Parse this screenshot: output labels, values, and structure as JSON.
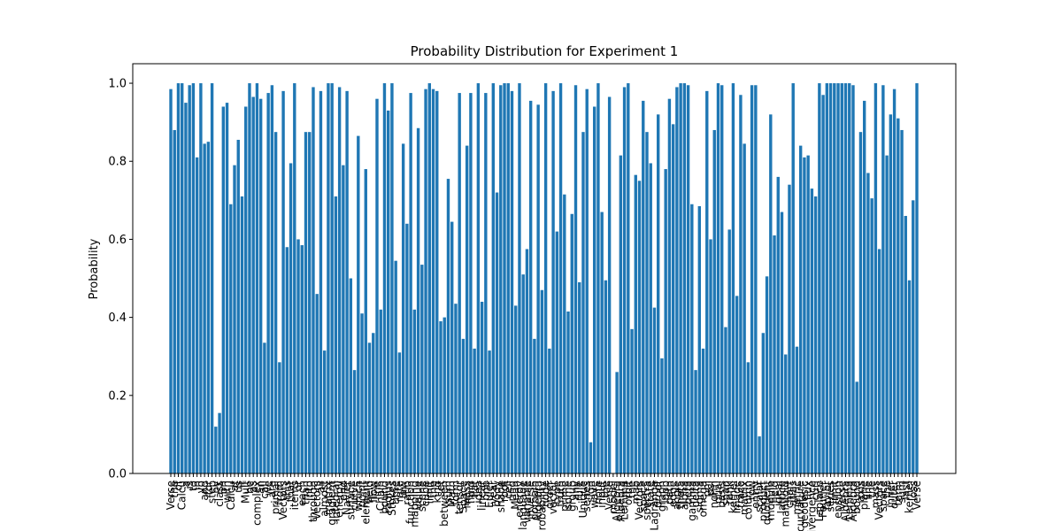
{
  "chart_data": {
    "type": "bar",
    "title": "Probability Distribution for Experiment 1",
    "ylabel": "Probability",
    "color": "#1f77b4",
    "ylim": [
      0,
      1.05
    ],
    "yticks": [
      {
        "value": 0,
        "label": "0.0"
      },
      {
        "value": 0.2,
        "label": "0.2"
      },
      {
        "value": 0.4,
        "label": "0.4"
      },
      {
        "value": 0.6,
        "label": "0.6"
      },
      {
        "value": 0.8,
        "label": "0.8"
      },
      {
        "value": 1.0,
        "label": "1.0"
      }
    ],
    "categories": [
      "Verse",
      "the",
      "of",
      "Calcu",
      "a",
      "is",
      "to",
      "in",
      "yo",
      "and",
      "for",
      "step",
      "by",
      "class",
      "on",
      "with",
      "Calcu",
      "at",
      "us",
      "it",
      "Mult",
      "be",
      "as",
      "complex",
      "an",
      "call",
      "we",
      "are",
      "primal",
      "from",
      "Vectors",
      "this",
      "that",
      "items",
      "or",
      "each",
      "than",
      "into",
      "through",
      "Vectors",
      "all",
      "almost",
      "matrix",
      "gradient",
      "integral",
      "energy",
      "end",
      "Navier",
      "surface",
      "curve",
      "which",
      "point",
      "element",
      "field",
      "flow",
      "line",
      "Chain",
      "bound",
      "radius",
      "Stokes",
      "time",
      "rate",
      "law",
      "ratio",
      "function",
      "mapping",
      "value",
      "scene",
      "cube",
      "limit",
      "the",
      "kind",
      "set",
      "between",
      "sum",
      "Math",
      "form",
      "tensor",
      "Space",
      "mass",
      "fluid",
      "flat",
      "idea",
      "linear",
      "one",
      "Euler",
      "year",
      "body",
      "shape",
      "root",
      "cell",
      "ring",
      "Mean",
      "energy",
      "language",
      "variable",
      "inverse",
      "domain",
      "Algebra",
      "probability",
      "node",
      "order",
      "vector",
      "type",
      "truth",
      "prime",
      "some",
      "group",
      "any",
      "rule",
      "Unique",
      "series",
      "sign",
      "wave",
      "note",
      "input",
      "the",
      "Verse",
      "model",
      "Algebra",
      "Algebra",
      "Lemma",
      "orbit",
      "the",
      "map",
      "Vectors",
      "space",
      "spectra",
      "state",
      "Lagrange",
      "proof",
      "graph",
      "loop",
      "path",
      "edge",
      "angle",
      "theta",
      "alpha",
      "beta",
      "gamma",
      "delta",
      "sigma",
      "omega",
      "phi",
      "psi",
      "norm",
      "dual",
      "basis",
      "span",
      "rank",
      "kernel",
      "image",
      "trace",
      "matrix",
      "column",
      "row",
      "entry",
      "scalar",
      "product",
      "quotient",
      "module",
      "field",
      "ideal",
      "lattice",
      "manifold",
      "chart",
      "atlas",
      "metric",
      "curvature",
      "geodesic",
      "flux",
      "divergence",
      "curl",
      "Laplace",
      "Fourier",
      "Taylor",
      "series",
      "limit",
      "epsilon",
      "Verse",
      "Algebra",
      "Lemma",
      "Algebra",
      "bound",
      "axis",
      "plane",
      "line",
      "the",
      "mass",
      "Vectors",
      "space",
      "the",
      "inner",
      "outer",
      "term",
      "sum",
      "last",
      "kernel",
      "loss",
      "Verse"
    ],
    "values": [
      0.985,
      0.88,
      1.0,
      1.0,
      0.95,
      0.995,
      1.0,
      0.81,
      1.0,
      0.845,
      0.85,
      1.0,
      0.12,
      0.155,
      0.94,
      0.95,
      0.69,
      0.79,
      0.855,
      0.71,
      0.94,
      1.0,
      0.965,
      1.0,
      0.96,
      0.335,
      0.975,
      0.995,
      0.875,
      0.285,
      0.98,
      0.58,
      0.795,
      1.0,
      0.6,
      0.585,
      0.875,
      0.875,
      0.99,
      0.46,
      0.98,
      0.315,
      1.0,
      1.0,
      0.71,
      0.99,
      0.79,
      0.98,
      0.5,
      0.265,
      0.865,
      0.41,
      0.78,
      0.335,
      0.36,
      0.96,
      0.42,
      1.0,
      0.93,
      1.0,
      0.545,
      0.31,
      0.845,
      0.64,
      0.975,
      0.42,
      0.885,
      0.535,
      0.985,
      1.0,
      0.985,
      0.98,
      0.39,
      0.4,
      0.755,
      0.645,
      0.435,
      0.975,
      0.345,
      0.84,
      0.975,
      0.32,
      1.0,
      0.44,
      0.975,
      0.315,
      1.0,
      0.72,
      0.995,
      1.0,
      1.0,
      0.98,
      0.43,
      1.0,
      0.51,
      0.575,
      0.955,
      0.345,
      0.945,
      0.47,
      1.0,
      0.32,
      0.98,
      0.62,
      1.0,
      0.715,
      0.415,
      0.665,
      0.995,
      0.49,
      0.875,
      0.985,
      0.08,
      0.94,
      1.0,
      0.67,
      0.495,
      0.965,
      0.0,
      0.26,
      0.815,
      0.99,
      1.0,
      0.37,
      0.765,
      0.75,
      0.955,
      0.875,
      0.795,
      0.425,
      0.92,
      0.295,
      0.78,
      0.96,
      0.895,
      0.99,
      1.0,
      1.0,
      0.995,
      0.69,
      0.265,
      0.685,
      0.32,
      0.98,
      0.6,
      0.88,
      1.0,
      0.995,
      0.375,
      0.625,
      1.0,
      0.455,
      0.97,
      0.845,
      0.285,
      0.995,
      0.995,
      0.095,
      0.36,
      0.505,
      0.92,
      0.61,
      0.76,
      0.67,
      0.305,
      0.74,
      1.0,
      0.325,
      0.84,
      0.81,
      0.815,
      0.73,
      0.71,
      1.0,
      0.97,
      1.0,
      1.0,
      1.0,
      1.0,
      1.0,
      1.0,
      1.0,
      0.995,
      0.235,
      0.875,
      0.955,
      0.77,
      0.705,
      1.0,
      0.575,
      0.995,
      0.815,
      0.92,
      0.985,
      0.91,
      0.88,
      0.66,
      0.495,
      0.7,
      1.0
    ]
  }
}
